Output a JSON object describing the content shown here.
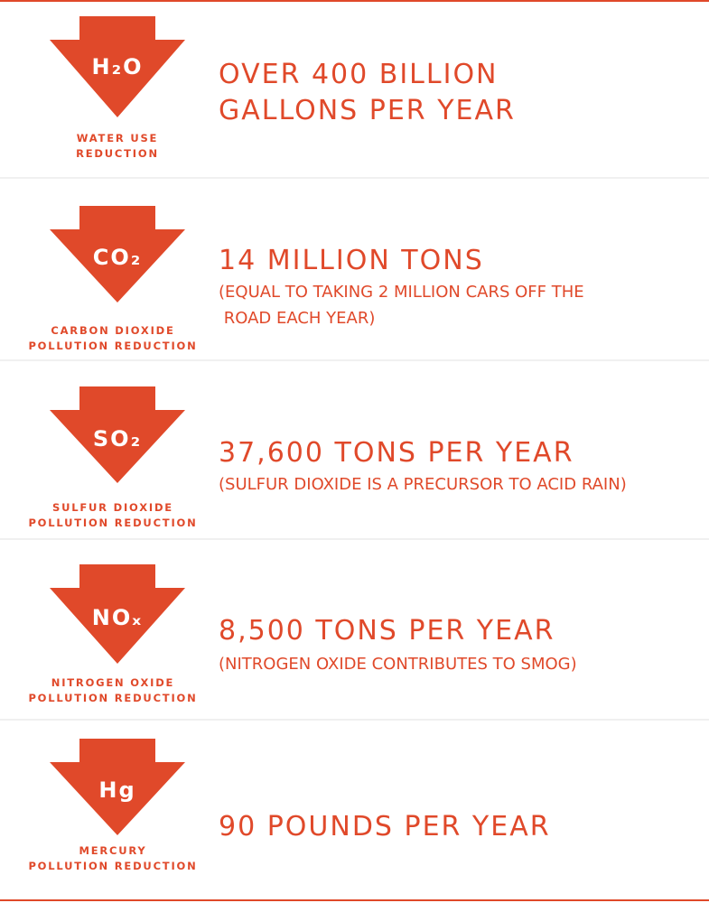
{
  "items": [
    {
      "symbol": "H₂O",
      "label": [
        "WATER USE",
        "REDUCTION"
      ],
      "heading": [
        "OVER 400 BILLION",
        "GALLONS PER YEAR"
      ],
      "note": []
    },
    {
      "symbol": "CO₂",
      "label": [
        "CARBON DIOXIDE",
        "POLLUTION REDUCTION"
      ],
      "heading": [
        "14 MILLION TONS"
      ],
      "note": [
        "(EQUAL TO TAKING 2 MILLION CARS OFF THE",
        " ROAD EACH YEAR)"
      ]
    },
    {
      "symbol": "SO₂",
      "label": [
        "SULFUR DIOXIDE",
        "POLLUTION REDUCTION"
      ],
      "heading": [
        "37,600 TONS PER YEAR"
      ],
      "note": [
        "(SULFUR DIOXIDE IS A PRECURSOR TO ACID RAIN)"
      ]
    },
    {
      "symbol": "NOₓ",
      "label": [
        "NITROGEN OXIDE",
        "POLLUTION REDUCTION"
      ],
      "heading": [
        "8,500 TONS PER YEAR"
      ],
      "note": [
        "(NITROGEN OXIDE CONTRIBUTES TO SMOG)"
      ]
    },
    {
      "symbol": "Hg",
      "label": [
        "MERCURY",
        "POLLUTION REDUCTION"
      ],
      "heading": [
        "90 POUNDS PER YEAR"
      ],
      "note": []
    }
  ]
}
